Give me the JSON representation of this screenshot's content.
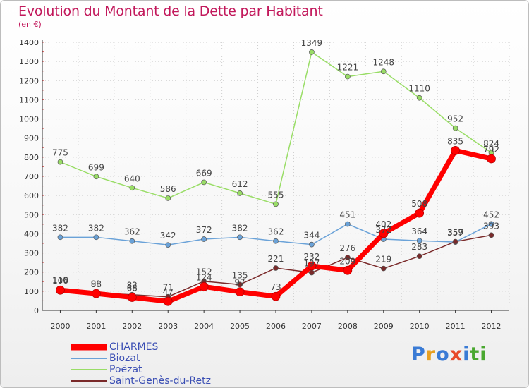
{
  "title": "Evolution du Montant de la Dette par Habitant",
  "subtitle": "(en €)",
  "logo": [
    "P",
    "r",
    "o",
    "x",
    "i",
    "ti"
  ],
  "chart_data": {
    "type": "line",
    "x": [
      "2000",
      "2001",
      "2002",
      "2003",
      "2004",
      "2005",
      "2006",
      "2007",
      "2008",
      "2009",
      "2010",
      "2011",
      "2012"
    ],
    "ylim": [
      0,
      1400
    ],
    "yticks": [
      0,
      100,
      200,
      300,
      400,
      500,
      600,
      700,
      800,
      900,
      1000,
      1100,
      1200,
      1300,
      1400
    ],
    "grid": true,
    "legend_position": "bottom-left",
    "series": [
      {
        "name": "CHARMES",
        "color": "#ff0000",
        "width": 7,
        "values": [
          106,
          88,
          68,
          47,
          124,
          97,
          73,
          232,
          209,
          402,
          508,
          835,
          792
        ],
        "labels": [
          "106",
          "88",
          "68",
          "47",
          "124",
          "97",
          "73",
          "232",
          "209",
          "402",
          "508",
          "835",
          "792"
        ]
      },
      {
        "name": "Biozat",
        "color": "#6aa2d8",
        "width": 1.5,
        "values": [
          382,
          382,
          362,
          342,
          372,
          382,
          362,
          344,
          451,
          372,
          364,
          357,
          452
        ],
        "labels": [
          "382",
          "382",
          "362",
          "342",
          "372",
          "382",
          "362",
          "344",
          "451",
          "372",
          "364",
          "357",
          "452"
        ]
      },
      {
        "name": "Poëzat",
        "color": "#99dd66",
        "width": 1.5,
        "values": [
          775,
          699,
          640,
          586,
          669,
          612,
          555,
          1349,
          1221,
          1248,
          1110,
          952,
          824
        ],
        "labels": [
          "775",
          "699",
          "640",
          "586",
          "669",
          "612",
          "555",
          "1349",
          "1221",
          "1248",
          "1110",
          "952",
          "824"
        ]
      },
      {
        "name": "Saint-Genès-du-Retz",
        "color": "#7a2a2a",
        "width": 1.5,
        "values": [
          110,
          91,
          82,
          71,
          152,
          135,
          221,
          197,
          276,
          219,
          283,
          359,
          393
        ],
        "labels": [
          "110",
          "91",
          "82",
          "71",
          "152",
          "135",
          "221",
          "197",
          "276",
          "219",
          "283",
          "359",
          "393"
        ]
      }
    ]
  }
}
